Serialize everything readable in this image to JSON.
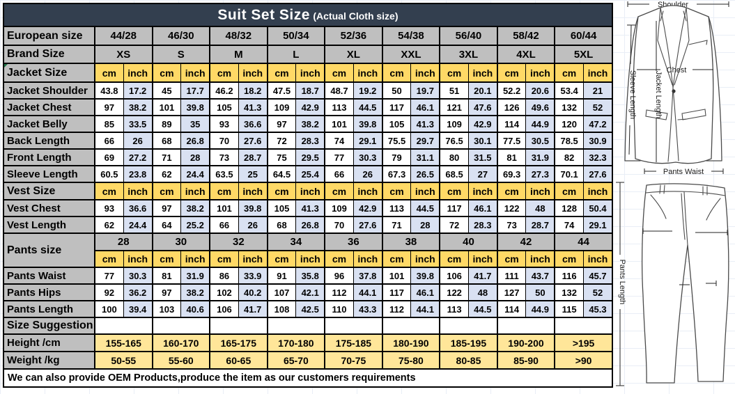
{
  "title": {
    "main": "Suit Set Size",
    "sub": "(Actual Cloth size)"
  },
  "columns": {
    "european_label": "European size",
    "european_sizes": [
      "44/28",
      "46/30",
      "48/32",
      "50/34",
      "52/36",
      "54/38",
      "56/40",
      "58/42",
      "60/44"
    ],
    "brand_label": "Brand Size",
    "brand_sizes": [
      "XS",
      "S",
      "M",
      "L",
      "XL",
      "XXL",
      "3XL",
      "4XL",
      "5XL"
    ],
    "unit_cm": "cm",
    "unit_inch": "inch"
  },
  "sections": [
    {
      "label": "Jacket Size",
      "rows": [
        {
          "label": "Jacket Shoulder",
          "values": [
            "43.8",
            "17.2",
            "45",
            "17.7",
            "46.2",
            "18.2",
            "47.5",
            "18.7",
            "48.7",
            "19.2",
            "50",
            "19.7",
            "51",
            "20.1",
            "52.2",
            "20.6",
            "53.4",
            "21"
          ]
        },
        {
          "label": "Jacket Chest",
          "values": [
            "97",
            "38.2",
            "101",
            "39.8",
            "105",
            "41.3",
            "109",
            "42.9",
            "113",
            "44.5",
            "117",
            "46.1",
            "121",
            "47.6",
            "126",
            "49.6",
            "132",
            "52"
          ]
        },
        {
          "label": "Jacket Belly",
          "values": [
            "85",
            "33.5",
            "89",
            "35",
            "93",
            "36.6",
            "97",
            "38.2",
            "101",
            "39.8",
            "105",
            "41.3",
            "109",
            "42.9",
            "114",
            "44.9",
            "120",
            "47.2"
          ]
        },
        {
          "label": "Back Length",
          "values": [
            "66",
            "26",
            "68",
            "26.8",
            "70",
            "27.6",
            "72",
            "28.3",
            "74",
            "29.1",
            "75.5",
            "29.7",
            "76.5",
            "30.1",
            "77.5",
            "30.5",
            "78.5",
            "30.9"
          ]
        },
        {
          "label": "Front Length",
          "values": [
            "69",
            "27.2",
            "71",
            "28",
            "73",
            "28.7",
            "75",
            "29.5",
            "77",
            "30.3",
            "79",
            "31.1",
            "80",
            "31.5",
            "81",
            "31.9",
            "82",
            "32.3"
          ]
        },
        {
          "label": "Sleeve Length",
          "values": [
            "60.5",
            "23.8",
            "62",
            "24.4",
            "63.5",
            "25",
            "64.5",
            "25.4",
            "66",
            "26",
            "67.3",
            "26.5",
            "68.5",
            "27",
            "69.3",
            "27.3",
            "70.1",
            "27.6"
          ]
        }
      ]
    },
    {
      "label": "Vest Size",
      "rows": [
        {
          "label": "Vest Chest",
          "values": [
            "93",
            "36.6",
            "97",
            "38.2",
            "101",
            "39.8",
            "105",
            "41.3",
            "109",
            "42.9",
            "113",
            "44.5",
            "117",
            "46.1",
            "122",
            "48",
            "128",
            "50.4"
          ]
        },
        {
          "label": "Vest Length",
          "values": [
            "62",
            "24.4",
            "64",
            "25.2",
            "66",
            "26",
            "68",
            "26.8",
            "70",
            "27.6",
            "71",
            "28",
            "72",
            "28.3",
            "73",
            "28.7",
            "74",
            "29.1"
          ]
        }
      ]
    }
  ],
  "pants": {
    "label": "Pants size",
    "sizes": [
      "28",
      "30",
      "32",
      "34",
      "36",
      "38",
      "40",
      "42",
      "44"
    ],
    "rows": [
      {
        "label": "Pants Waist",
        "values": [
          "77",
          "30.3",
          "81",
          "31.9",
          "86",
          "33.9",
          "91",
          "35.8",
          "96",
          "37.8",
          "101",
          "39.8",
          "106",
          "41.7",
          "111",
          "43.7",
          "116",
          "45.7"
        ]
      },
      {
        "label": "Pants Hips",
        "values": [
          "92",
          "36.2",
          "97",
          "38.2",
          "102",
          "40.2",
          "107",
          "42.1",
          "112",
          "44.1",
          "117",
          "46.1",
          "122",
          "48",
          "127",
          "50",
          "132",
          "52"
        ]
      },
      {
        "label": "Pants Length",
        "values": [
          "100",
          "39.4",
          "103",
          "40.6",
          "106",
          "41.7",
          "108",
          "42.5",
          "110",
          "43.3",
          "112",
          "44.1",
          "113",
          "44.5",
          "114",
          "44.9",
          "115",
          "45.3"
        ]
      }
    ]
  },
  "suggestion": {
    "label": "Size Suggestion",
    "rows": [
      {
        "label": "Height /cm",
        "values": [
          "155-165",
          "160-170",
          "165-175",
          "170-180",
          "175-185",
          "180-190",
          "185-195",
          "190-200",
          ">195"
        ]
      },
      {
        "label": "Weight /kg",
        "values": [
          "50-55",
          "55-60",
          "60-65",
          "65-70",
          "70-75",
          "75-80",
          "80-85",
          "85-90",
          ">90"
        ]
      }
    ]
  },
  "footer": "We can also provide OEM Products,produce the item as our customers requirements",
  "diagram": {
    "jacket": {
      "shoulder": "Shoulder",
      "chest": "Chest",
      "jacket_length": "Jacket Length",
      "sleeve_length": "Sleeve Length",
      "pants_waist": "Pants Waist"
    },
    "pants": {
      "pants_length": "Pants Length"
    }
  },
  "colors": {
    "title_bar": "#333F4F",
    "header_gray": "#BFBFBF",
    "unit_yellow": "#FFD966",
    "inch_blue": "#D9E1F2",
    "suggestion_yellow": "#FFE699"
  }
}
